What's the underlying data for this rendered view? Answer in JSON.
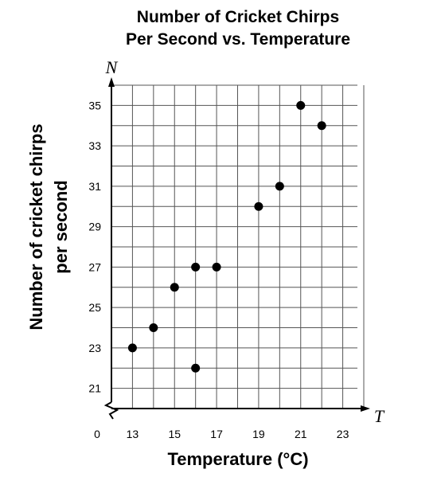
{
  "chart_data": {
    "type": "scatter",
    "title_lines": [
      "Number of Cricket Chirps",
      "Per Second vs. Temperature"
    ],
    "xlabel": "Temperature (°C)",
    "ylabel_lines": [
      "Number of cricket chirps",
      "per second"
    ],
    "x_variable": "T",
    "y_variable": "N",
    "origin_label": "0",
    "x_ticks": [
      13,
      15,
      17,
      19,
      21,
      23
    ],
    "y_ticks": [
      21,
      23,
      25,
      27,
      29,
      31,
      33,
      35
    ],
    "xlim": [
      12,
      24
    ],
    "ylim": [
      20,
      36
    ],
    "axis_break": true,
    "grid": true,
    "points": [
      {
        "x": 13,
        "y": 23
      },
      {
        "x": 14,
        "y": 24
      },
      {
        "x": 15,
        "y": 26
      },
      {
        "x": 16,
        "y": 27
      },
      {
        "x": 16,
        "y": 22
      },
      {
        "x": 17,
        "y": 27
      },
      {
        "x": 19,
        "y": 30
      },
      {
        "x": 20,
        "y": 31
      },
      {
        "x": 21,
        "y": 35
      },
      {
        "x": 22,
        "y": 34
      }
    ]
  }
}
